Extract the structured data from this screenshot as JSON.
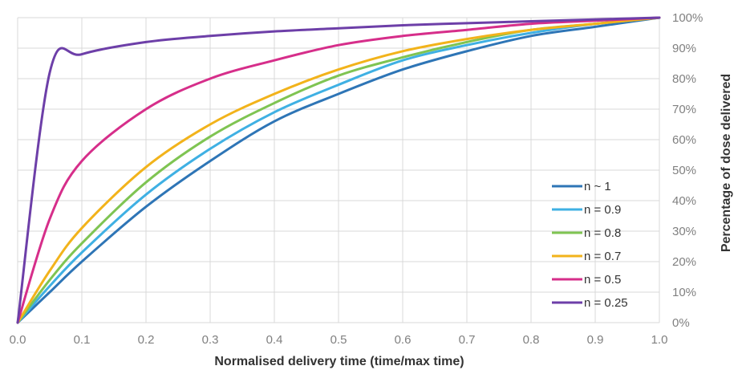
{
  "chart_data": {
    "type": "line",
    "title": "",
    "xlabel": "Normalised delivery time (time/max time)",
    "ylabel": "Percentage of dose delivered",
    "xlim": [
      0,
      1
    ],
    "ylim": [
      0,
      100
    ],
    "x_ticks": [
      "0.0",
      "0.1",
      "0.2",
      "0.3",
      "0.4",
      "0.5",
      "0.6",
      "0.7",
      "0.8",
      "0.9",
      "1.0"
    ],
    "y_ticks": [
      "0%",
      "10%",
      "20%",
      "30%",
      "40%",
      "50%",
      "60%",
      "70%",
      "80%",
      "90%",
      "100%"
    ],
    "grid": true,
    "y_axis_side": "right",
    "legend_position": "bottom-right",
    "x": [
      0,
      0.05,
      0.1,
      0.2,
      0.3,
      0.4,
      0.5,
      0.6,
      0.7,
      0.8,
      0.9,
      1.0
    ],
    "series": [
      {
        "name": "n ~ 1",
        "color": "#2e75b6",
        "values": [
          0,
          10,
          20,
          38,
          53,
          66,
          75,
          83,
          89,
          94,
          97,
          100
        ]
      },
      {
        "name": "n = 0.9",
        "color": "#3fb0e3",
        "values": [
          0,
          12,
          23,
          42,
          57,
          69,
          78,
          86,
          91,
          95,
          98,
          100
        ]
      },
      {
        "name": "n = 0.8",
        "color": "#7fc452",
        "values": [
          0,
          14,
          26,
          46,
          61,
          72,
          81,
          87,
          92,
          96,
          98,
          100
        ]
      },
      {
        "name": "n = 0.7",
        "color": "#f2b31b",
        "values": [
          0,
          17,
          31,
          51,
          65,
          75,
          83,
          89,
          93,
          96,
          98,
          100
        ]
      },
      {
        "name": "n = 0.5",
        "color": "#d62e8a",
        "values": [
          0,
          34,
          53,
          70,
          80,
          86,
          91,
          94,
          96,
          98,
          99,
          100
        ]
      },
      {
        "name": "n = 0.25",
        "color": "#6d3fa8",
        "values": [
          0,
          82,
          88,
          92,
          94,
          95.5,
          96.5,
          97.5,
          98.2,
          98.8,
          99.4,
          100
        ]
      }
    ]
  }
}
